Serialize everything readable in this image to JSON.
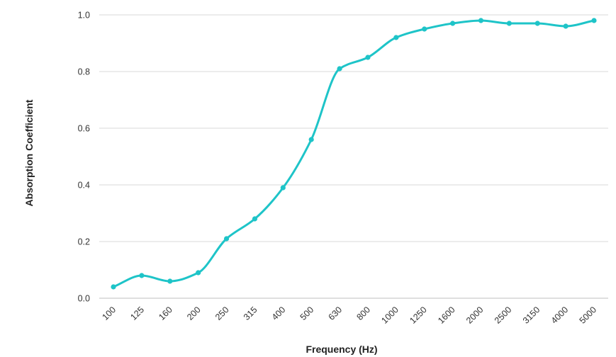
{
  "chart_data": {
    "type": "line",
    "title": "",
    "xlabel": "Frequency (Hz)",
    "ylabel": "Absorption Coefficient",
    "categories": [
      "100",
      "125",
      "160",
      "200",
      "250",
      "315",
      "400",
      "500",
      "630",
      "800",
      "1000",
      "1250",
      "1600",
      "2000",
      "2500",
      "3150",
      "4000",
      "5000"
    ],
    "series": [
      {
        "values": [
          0.04,
          0.08,
          0.06,
          0.09,
          0.21,
          0.28,
          0.39,
          0.56,
          0.81,
          0.85,
          0.92,
          0.95,
          0.97,
          0.98,
          0.97,
          0.97,
          0.96,
          0.98
        ]
      }
    ],
    "y_ticks": [
      "0.0",
      "0.2",
      "0.4",
      "0.6",
      "0.8",
      "1.0"
    ],
    "ylim": [
      0,
      1.0
    ],
    "grid": true,
    "legend": "none",
    "colors": {
      "line": "#1ec4c8",
      "grid": "#d9d9d9"
    }
  }
}
